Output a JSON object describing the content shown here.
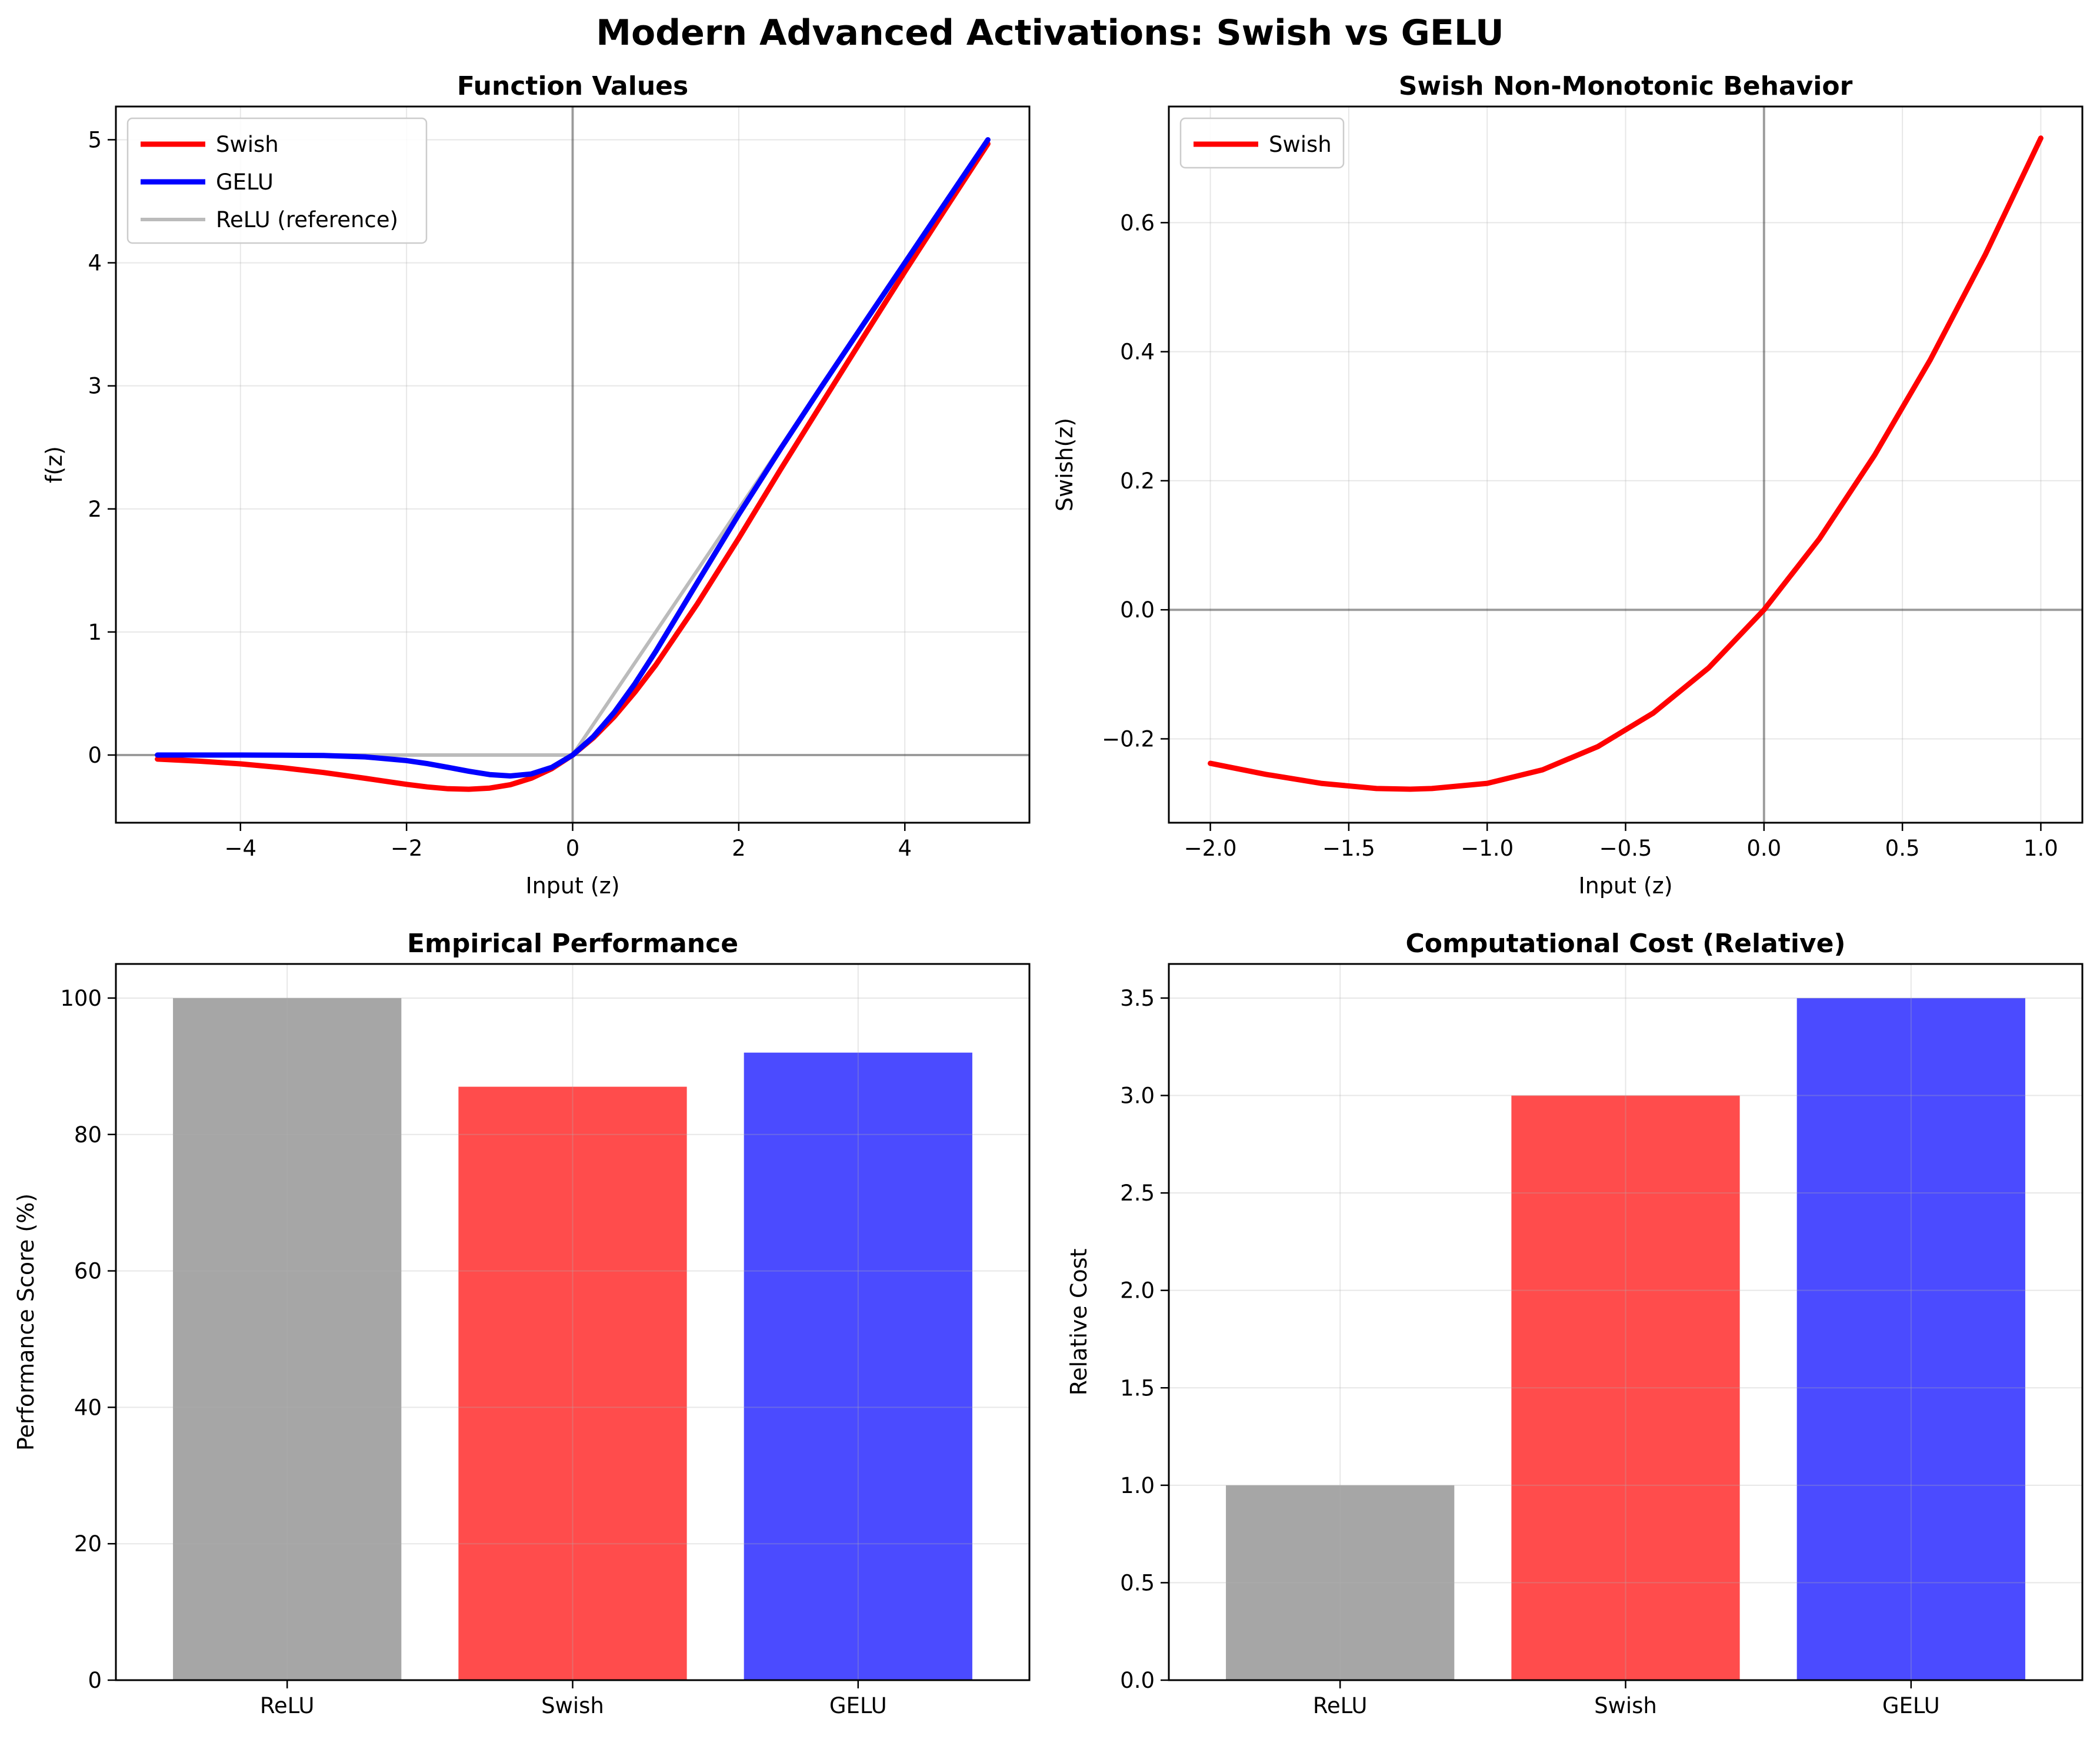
{
  "figure": {
    "title": "Modern Advanced Activations: Swish vs GELU"
  },
  "chart_data": [
    {
      "id": "function-values",
      "type": "line",
      "title": "Function Values",
      "xlabel": "Input (z)",
      "ylabel": "f(z)",
      "xlim": [
        -5.5,
        5.5
      ],
      "ylim": [
        -0.55,
        5.27
      ],
      "xticks": [
        -4,
        -2,
        0,
        2,
        4
      ],
      "xtick_labels": [
        "−4",
        "−2",
        "0",
        "2",
        "4"
      ],
      "yticks": [
        0,
        1,
        2,
        3,
        4,
        5
      ],
      "ytick_labels": [
        "0",
        "1",
        "2",
        "3",
        "4",
        "5"
      ],
      "grid": true,
      "zero_lines": true,
      "legend": "top-left",
      "series": [
        {
          "name": "Swish",
          "color": "#ff0000",
          "width": 3,
          "x": [
            -5,
            -4.5,
            -4,
            -3.5,
            -3,
            -2.5,
            -2,
            -1.75,
            -1.5,
            -1.25,
            -1,
            -0.75,
            -0.5,
            -0.25,
            0,
            0.25,
            0.5,
            0.75,
            1,
            1.5,
            2,
            2.5,
            3,
            3.5,
            4,
            4.5,
            5
          ],
          "y": [
            -0.033,
            -0.05,
            -0.072,
            -0.103,
            -0.142,
            -0.189,
            -0.238,
            -0.259,
            -0.274,
            -0.278,
            -0.269,
            -0.241,
            -0.189,
            -0.11,
            0,
            0.14,
            0.311,
            0.511,
            0.731,
            1.227,
            1.762,
            2.317,
            2.857,
            3.395,
            3.928,
            4.45,
            4.967
          ]
        },
        {
          "name": "GELU",
          "color": "#0000ff",
          "width": 3,
          "x": [
            -5,
            -4.5,
            -4,
            -3.5,
            -3,
            -2.5,
            -2,
            -1.75,
            -1.5,
            -1.25,
            -1,
            -0.75,
            -0.5,
            -0.25,
            0,
            0.25,
            0.5,
            0.75,
            1,
            1.5,
            2,
            2.5,
            3,
            3.5,
            4,
            4.5,
            5
          ],
          "y": [
            0,
            0,
            0,
            -0.001,
            -0.004,
            -0.015,
            -0.045,
            -0.07,
            -0.1,
            -0.132,
            -0.159,
            -0.17,
            -0.154,
            -0.1,
            0,
            0.15,
            0.346,
            0.58,
            0.841,
            1.4,
            1.955,
            2.485,
            2.996,
            3.499,
            4,
            4.5,
            5
          ]
        },
        {
          "name": "ReLU (reference)",
          "color": "#bbbbbb",
          "width": 2,
          "x": [
            -5,
            0,
            5
          ],
          "y": [
            0,
            0,
            5
          ]
        }
      ]
    },
    {
      "id": "swish-non-monotonic",
      "type": "line",
      "title": "Swish Non-Monotonic Behavior",
      "xlabel": "Input (z)",
      "ylabel": "Swish(z)",
      "xlim": [
        -2.15,
        1.15
      ],
      "ylim": [
        -0.33,
        0.78
      ],
      "xticks": [
        -2,
        -1.5,
        -1,
        -0.5,
        0,
        0.5,
        1
      ],
      "xtick_labels": [
        "−2.0",
        "−1.5",
        "−1.0",
        "−0.5",
        "0.0",
        "0.5",
        "1.0"
      ],
      "yticks": [
        -0.2,
        0,
        0.2,
        0.4,
        0.6
      ],
      "ytick_labels": [
        "−0.2",
        "0.0",
        "0.2",
        "0.4",
        "0.6"
      ],
      "grid": true,
      "zero_lines": true,
      "legend": "top-left",
      "series": [
        {
          "name": "Swish",
          "color": "#ff0000",
          "width": 3,
          "x": [
            -2,
            -1.8,
            -1.6,
            -1.4,
            -1.278,
            -1.2,
            -1,
            -0.8,
            -0.6,
            -0.4,
            -0.2,
            0,
            0.2,
            0.4,
            0.6,
            0.8,
            1
          ],
          "y": [
            -0.238,
            -0.255,
            -0.269,
            -0.277,
            -0.278,
            -0.277,
            -0.269,
            -0.248,
            -0.212,
            -0.16,
            -0.09,
            0,
            0.11,
            0.24,
            0.387,
            0.551,
            0.731
          ]
        }
      ]
    },
    {
      "id": "empirical-performance",
      "type": "bar",
      "title": "Empirical Performance",
      "xlabel": "",
      "ylabel": "Performance Score (%)",
      "categories": [
        "ReLU",
        "Swish",
        "GELU"
      ],
      "values": [
        100,
        87,
        92
      ],
      "colors": [
        "#a6a6a6",
        "#ff4c4c",
        "#4b4bff"
      ],
      "ylim": [
        0,
        105
      ],
      "yticks": [
        0,
        20,
        40,
        60,
        80,
        100
      ],
      "ytick_labels": [
        "0",
        "20",
        "40",
        "60",
        "80",
        "100"
      ],
      "grid": true
    },
    {
      "id": "computational-cost",
      "type": "bar",
      "title": "Computational Cost (Relative)",
      "xlabel": "",
      "ylabel": "Relative Cost",
      "categories": [
        "ReLU",
        "Swish",
        "GELU"
      ],
      "values": [
        1.0,
        3.0,
        3.5
      ],
      "colors": [
        "#a6a6a6",
        "#ff4c4c",
        "#4b4bff"
      ],
      "ylim": [
        0,
        3.675
      ],
      "yticks": [
        0,
        0.5,
        1,
        1.5,
        2,
        2.5,
        3,
        3.5
      ],
      "ytick_labels": [
        "0.0",
        "0.5",
        "1.0",
        "1.5",
        "2.0",
        "2.5",
        "3.0",
        "3.5"
      ],
      "grid": true
    }
  ]
}
